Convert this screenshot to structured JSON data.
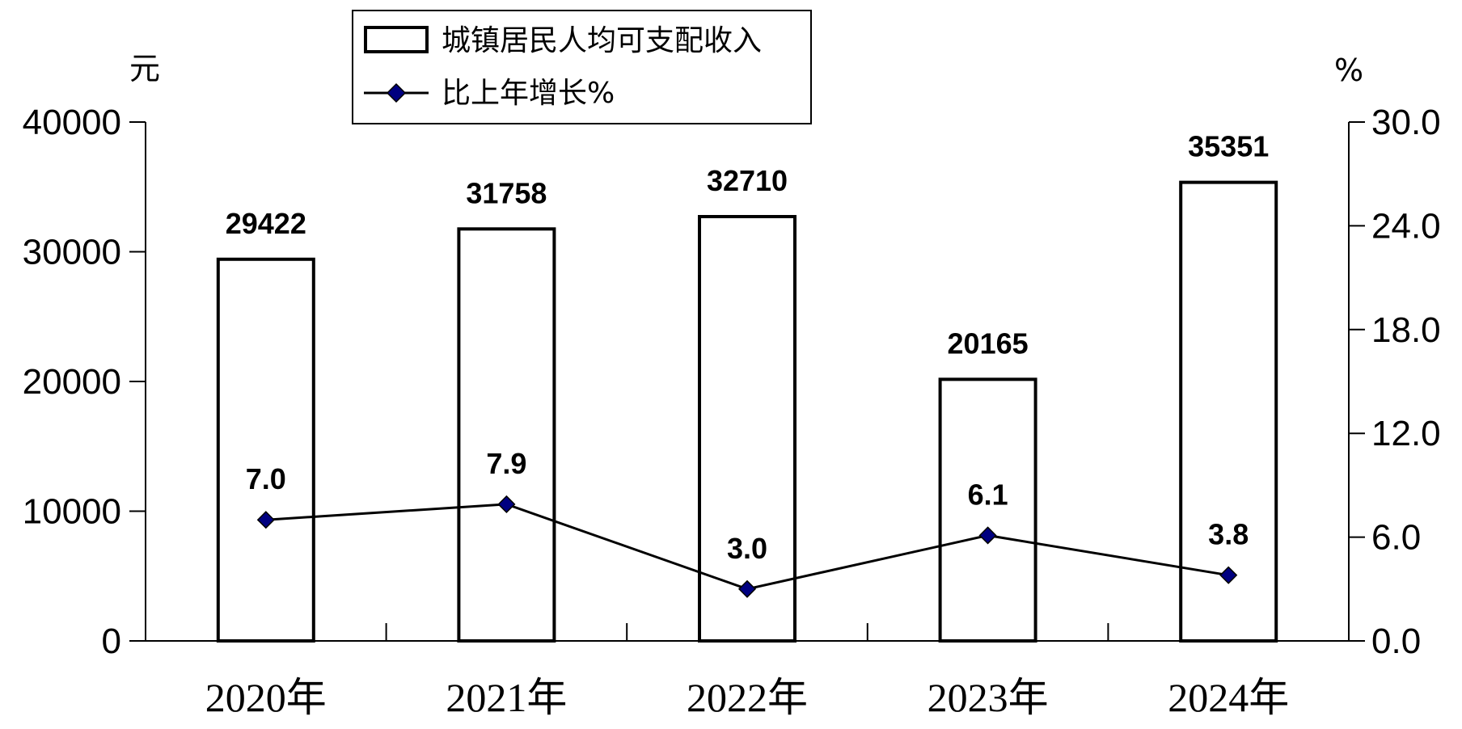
{
  "chart_data": {
    "type": "bar",
    "categories": [
      "2020年",
      "2021年",
      "2022年",
      "2023年",
      "2024年"
    ],
    "left_axis": {
      "unit": "元",
      "ticks": [
        "40000",
        "30000",
        "20000",
        "10000",
        "0"
      ],
      "tick_values": [
        40000,
        30000,
        20000,
        10000,
        0
      ],
      "ylim": [
        0,
        40000
      ]
    },
    "right_axis": {
      "unit": "%",
      "ticks": [
        "30.0",
        "24.0",
        "18.0",
        "12.0",
        "6.0",
        "0.0"
      ],
      "tick_values": [
        30,
        24,
        18,
        12,
        6,
        0
      ],
      "ylim": [
        0,
        30
      ]
    },
    "series": [
      {
        "name": "城镇居民人均可支配收入",
        "type": "bar",
        "axis": "left",
        "values": [
          29422,
          31758,
          32710,
          20165,
          35351
        ],
        "labels": [
          "29422",
          "31758",
          "32710",
          "20165",
          "35351"
        ]
      },
      {
        "name": "比上年增长%",
        "type": "line",
        "axis": "right",
        "values": [
          7.0,
          7.9,
          3.0,
          6.1,
          3.8
        ],
        "labels": [
          "7.0",
          "7.9",
          "3.0",
          "6.1",
          "3.8"
        ],
        "marker": "diamond",
        "marker_color": "#000080"
      }
    ],
    "legend": {
      "placement": "top-center",
      "items": [
        "城镇居民人均可支配收入",
        "比上年增长%"
      ]
    },
    "colors": {
      "bar_fill": "#ffffff",
      "stroke": "#000000",
      "marker": "#000080"
    },
    "grid": false
  }
}
